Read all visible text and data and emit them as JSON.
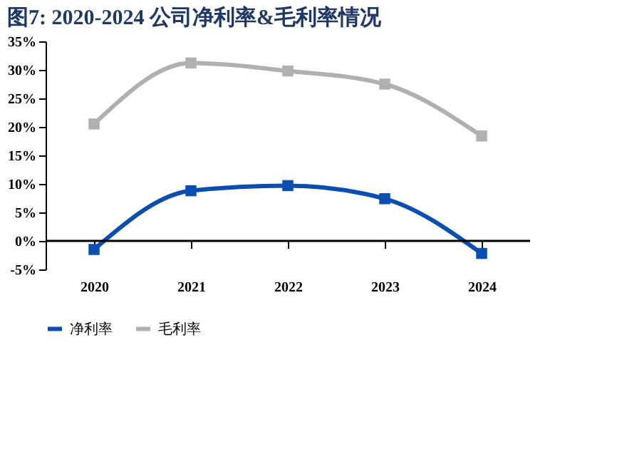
{
  "chart_data": {
    "type": "line",
    "title": "图7:  2020-2024 公司净利率&毛利率情况",
    "categories": [
      "2020",
      "2021",
      "2022",
      "2023",
      "2024"
    ],
    "series": [
      {
        "name": "净利率",
        "color": "#0a4fb0",
        "values": [
          -1.5,
          8.8,
          9.7,
          7.4,
          -2.2
        ]
      },
      {
        "name": "毛利率",
        "color": "#b0b0b0",
        "values": [
          20.5,
          31.2,
          29.8,
          27.5,
          18.4
        ]
      }
    ],
    "ylim": [
      -5,
      35
    ],
    "yticks": [
      {
        "value": -5,
        "label": "-5%"
      },
      {
        "value": 0,
        "label": "0%"
      },
      {
        "value": 5,
        "label": "5%"
      },
      {
        "value": 10,
        "label": "10%"
      },
      {
        "value": 15,
        "label": "15%"
      },
      {
        "value": 20,
        "label": "20%"
      },
      {
        "value": 25,
        "label": "25%"
      },
      {
        "value": 30,
        "label": "30%"
      },
      {
        "value": 35,
        "label": "35%"
      }
    ],
    "ref_lines": [
      {
        "axis": "y",
        "value": 0,
        "color": "#000000"
      }
    ],
    "marker": "square",
    "legend": "bottom",
    "grid": false
  }
}
